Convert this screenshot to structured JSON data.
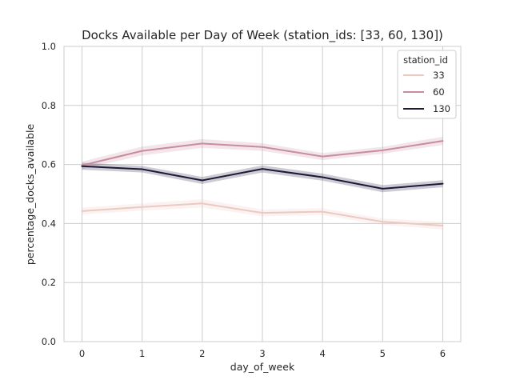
{
  "chart_data": {
    "type": "line",
    "title": "Docks Available per Day of Week (station_ids: [33, 60, 130])",
    "xlabel": "day_of_week",
    "ylabel": "percentage_docks_available",
    "x": [
      0,
      1,
      2,
      3,
      4,
      5,
      6
    ],
    "xlim": [
      -0.3,
      6.3
    ],
    "ylim": [
      0.0,
      1.0
    ],
    "yticks": [
      "0.0",
      "0.2",
      "0.4",
      "0.6",
      "0.8",
      "1.0"
    ],
    "xticks": [
      "0",
      "1",
      "2",
      "3",
      "4",
      "5",
      "6"
    ],
    "grid": true,
    "legend": {
      "title": "station_id",
      "placement": "top-right"
    },
    "series": [
      {
        "name": "33",
        "color": "#ebc9c1",
        "values": [
          0.442,
          0.456,
          0.468,
          0.436,
          0.44,
          0.406,
          0.393
        ],
        "ci_halfwidth": [
          0.012,
          0.012,
          0.014,
          0.012,
          0.012,
          0.011,
          0.013
        ]
      },
      {
        "name": "60",
        "color": "#c88ba0",
        "values": [
          0.597,
          0.646,
          0.671,
          0.659,
          0.627,
          0.648,
          0.68
        ],
        "ci_halfwidth": [
          0.013,
          0.015,
          0.015,
          0.013,
          0.012,
          0.012,
          0.014
        ]
      },
      {
        "name": "130",
        "color": "#1f1838",
        "values": [
          0.594,
          0.584,
          0.546,
          0.585,
          0.557,
          0.518,
          0.535
        ],
        "ci_halfwidth": [
          0.012,
          0.011,
          0.012,
          0.012,
          0.012,
          0.012,
          0.012
        ]
      }
    ]
  }
}
